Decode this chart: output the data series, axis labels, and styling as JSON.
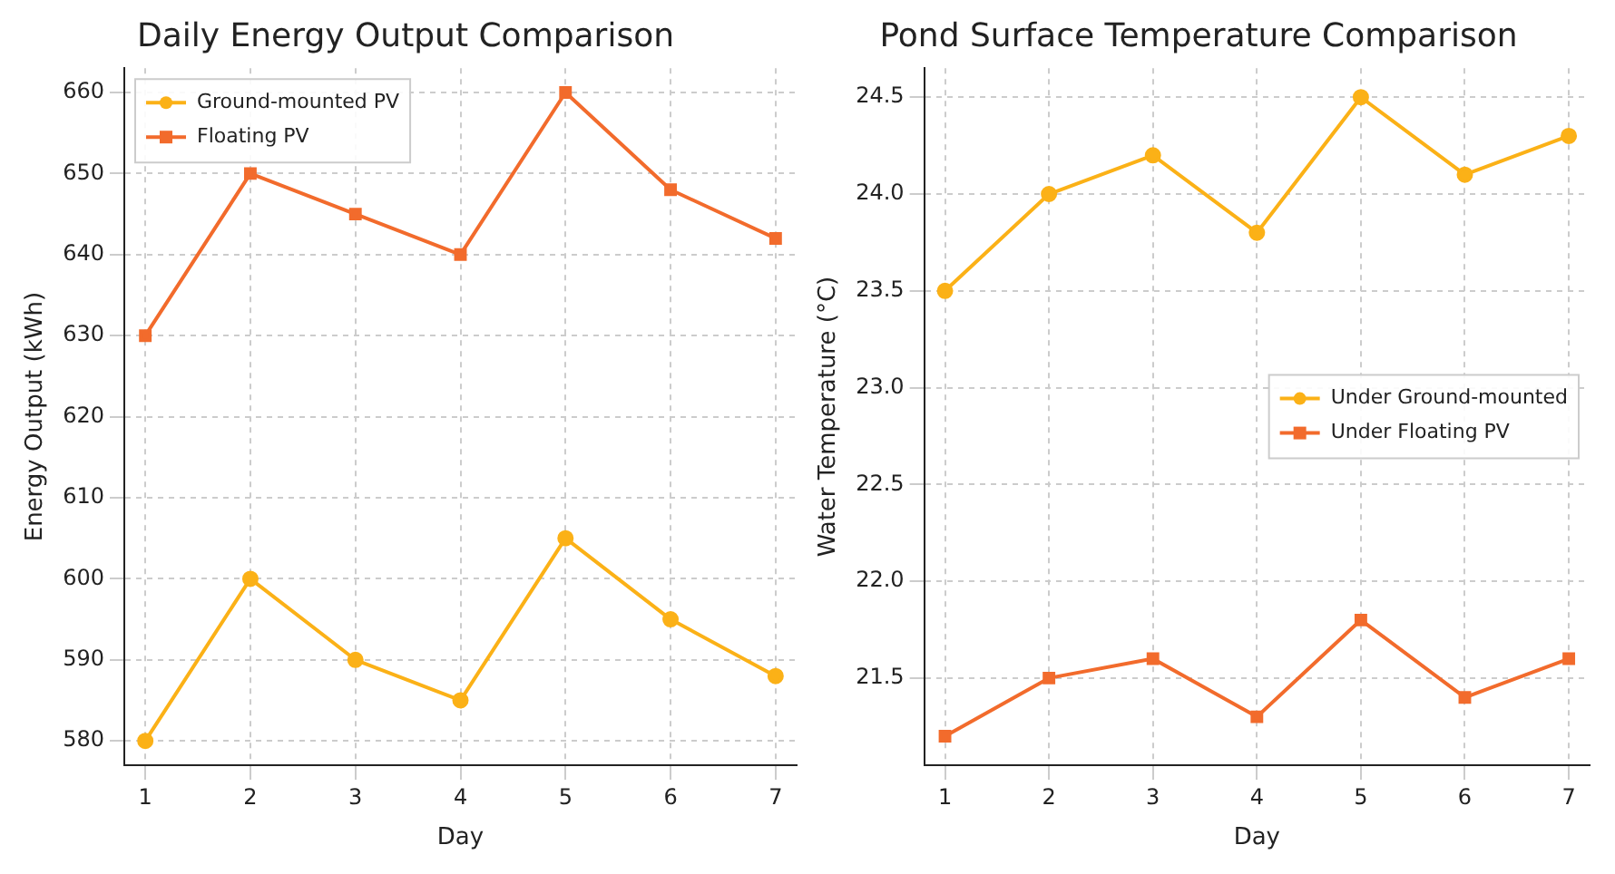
{
  "chart_data": [
    {
      "type": "line",
      "title": "Daily Energy Output Comparison",
      "xlabel": "Day",
      "ylabel": "Energy Output (kWh)",
      "x": [
        1,
        2,
        3,
        4,
        5,
        6,
        7
      ],
      "xlim": [
        0.8,
        7.2
      ],
      "xticks": [
        1,
        2,
        3,
        4,
        5,
        6,
        7
      ],
      "ylim": [
        577,
        663
      ],
      "yticks": [
        580,
        590,
        600,
        610,
        620,
        630,
        640,
        650,
        660
      ],
      "grid": true,
      "legend": "top left",
      "series": [
        {
          "name": "Ground-mounted PV",
          "color": "#fbb117",
          "marker": "circle",
          "values": [
            580,
            600,
            590,
            585,
            605,
            595,
            588
          ]
        },
        {
          "name": "Floating PV",
          "color": "#f26b2c",
          "marker": "square",
          "values": [
            630,
            650,
            645,
            640,
            660,
            648,
            642
          ]
        }
      ]
    },
    {
      "type": "line",
      "title": "Pond Surface Temperature Comparison",
      "xlabel": "Day",
      "ylabel": "Water Temperature (°C)",
      "x": [
        1,
        2,
        3,
        4,
        5,
        6,
        7
      ],
      "xlim": [
        0.8,
        7.2
      ],
      "xticks": [
        1,
        2,
        3,
        4,
        5,
        6,
        7
      ],
      "ylim": [
        21.05,
        24.65
      ],
      "yticks": [
        21.5,
        {
          "value": 22,
          "label": "22.0"
        },
        22.5,
        {
          "value": 23,
          "label": "23.0"
        },
        23.5,
        {
          "value": 24,
          "label": "24.0"
        },
        24.5
      ],
      "grid": true,
      "legend": "right",
      "series": [
        {
          "name": "Under Ground-mounted",
          "color": "#fbb117",
          "marker": "circle",
          "values": [
            23.5,
            24.0,
            24.2,
            23.8,
            24.5,
            24.1,
            24.3
          ]
        },
        {
          "name": "Under Floating PV",
          "color": "#f26b2c",
          "marker": "square",
          "values": [
            21.2,
            21.5,
            21.6,
            21.3,
            21.8,
            21.4,
            21.6
          ]
        }
      ]
    }
  ]
}
